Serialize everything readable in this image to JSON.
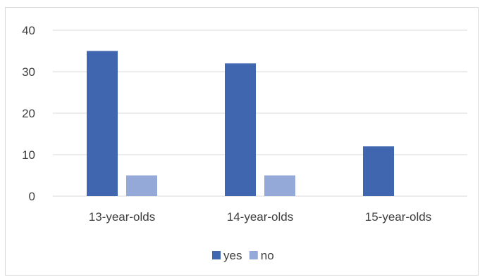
{
  "chart_data": {
    "type": "bar",
    "title": "",
    "xlabel": "",
    "ylabel": "",
    "categories": [
      "13-year-olds",
      "14-year-olds",
      "15-year-olds"
    ],
    "series": [
      {
        "name": "yes",
        "values": [
          35,
          32,
          12
        ],
        "color": "#4166b0"
      },
      {
        "name": "no",
        "values": [
          5,
          5,
          0
        ],
        "color": "#95a9d9"
      }
    ],
    "ylim": [
      0,
      40
    ],
    "yticks": [
      0,
      10,
      20,
      30,
      40
    ],
    "grid": true,
    "legend_position": "bottom"
  }
}
